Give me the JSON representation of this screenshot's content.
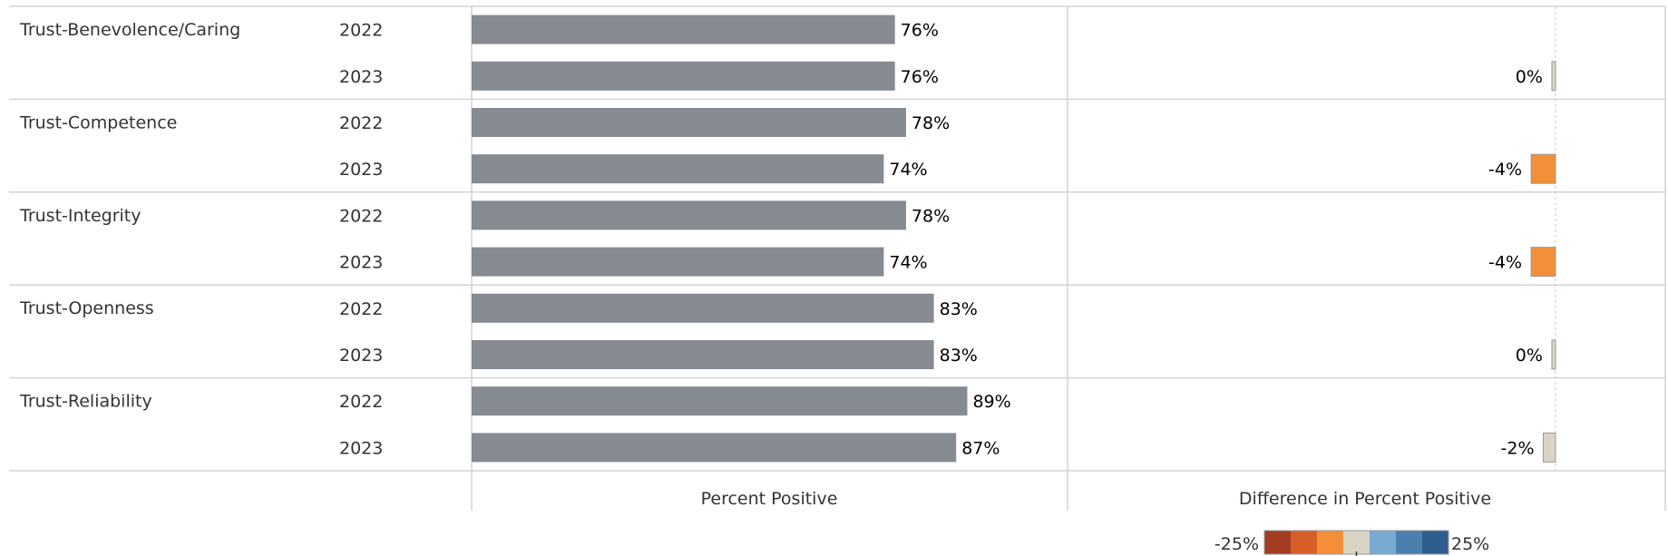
{
  "chart_data": {
    "type": "bar",
    "categories": [
      "Trust-Benevolence/Caring",
      "Trust-Competence",
      "Trust-Integrity",
      "Trust-Openness",
      "Trust-Reliability"
    ],
    "years": [
      "2022",
      "2023"
    ],
    "rows": [
      {
        "category": "Trust-Benevolence/Caring",
        "year": "2022",
        "percent_positive": 76,
        "label": "76%",
        "difference": null,
        "difference_label": ""
      },
      {
        "category": "Trust-Benevolence/Caring",
        "year": "2023",
        "percent_positive": 76,
        "label": "76%",
        "difference": 0,
        "difference_label": "0%"
      },
      {
        "category": "Trust-Competence",
        "year": "2022",
        "percent_positive": 78,
        "label": "78%",
        "difference": null,
        "difference_label": ""
      },
      {
        "category": "Trust-Competence",
        "year": "2023",
        "percent_positive": 74,
        "label": "74%",
        "difference": -4,
        "difference_label": "-4%"
      },
      {
        "category": "Trust-Integrity",
        "year": "2022",
        "percent_positive": 78,
        "label": "78%",
        "difference": null,
        "difference_label": ""
      },
      {
        "category": "Trust-Integrity",
        "year": "2023",
        "percent_positive": 74,
        "label": "74%",
        "difference": -4,
        "difference_label": "-4%"
      },
      {
        "category": "Trust-Openness",
        "year": "2022",
        "percent_positive": 83,
        "label": "83%",
        "difference": null,
        "difference_label": ""
      },
      {
        "category": "Trust-Openness",
        "year": "2023",
        "percent_positive": 83,
        "label": "83%",
        "difference": 0,
        "difference_label": "0%"
      },
      {
        "category": "Trust-Reliability",
        "year": "2022",
        "percent_positive": 89,
        "label": "89%",
        "difference": null,
        "difference_label": ""
      },
      {
        "category": "Trust-Reliability",
        "year": "2023",
        "percent_positive": 87,
        "label": "87%",
        "difference": -2,
        "difference_label": "-2%"
      }
    ],
    "panels": [
      {
        "xlabel": "Percent Positive",
        "xlim": [
          0,
          107
        ]
      },
      {
        "xlabel": "Difference in Percent Positive",
        "xlim": [
          -80,
          18
        ]
      }
    ],
    "bar_color": "#858b91",
    "legend": {
      "min_label": "-25%",
      "max_label": "25%",
      "colors": [
        "#a33c22",
        "#d65f27",
        "#f28f38",
        "#dad4c4",
        "#79aad2",
        "#4b7fae",
        "#2f5d8e"
      ]
    },
    "grid": false
  }
}
